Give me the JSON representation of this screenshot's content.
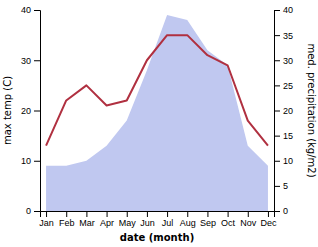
{
  "chart_data": {
    "type": "line",
    "xlabel": "date (month)",
    "ylabel": "max temp (C)",
    "y2label": "med. precipitation (kg/m2)",
    "categories": [
      "Jan",
      "Feb",
      "Mar",
      "Apr",
      "May",
      "Jun",
      "Jul",
      "Aug",
      "Sep",
      "Oct",
      "Nov",
      "Dec"
    ],
    "series": [
      {
        "type": "area",
        "axis": "y2",
        "color": "#c0c8f0",
        "values": [
          9,
          9,
          10,
          13,
          18,
          28,
          39,
          38,
          32,
          29,
          13,
          9
        ]
      },
      {
        "type": "line",
        "color": "#b03040",
        "values": [
          13,
          22,
          25,
          21,
          22,
          30,
          35,
          35,
          31,
          29,
          18,
          13
        ]
      }
    ],
    "ylim": [
      0,
      40
    ],
    "yticks": [
      0,
      10,
      20,
      30,
      40
    ],
    "y2lim": [
      0,
      40
    ],
    "y2ticks": [
      0,
      5,
      10,
      15,
      20,
      25,
      30,
      35,
      40
    ],
    "grid": false
  }
}
